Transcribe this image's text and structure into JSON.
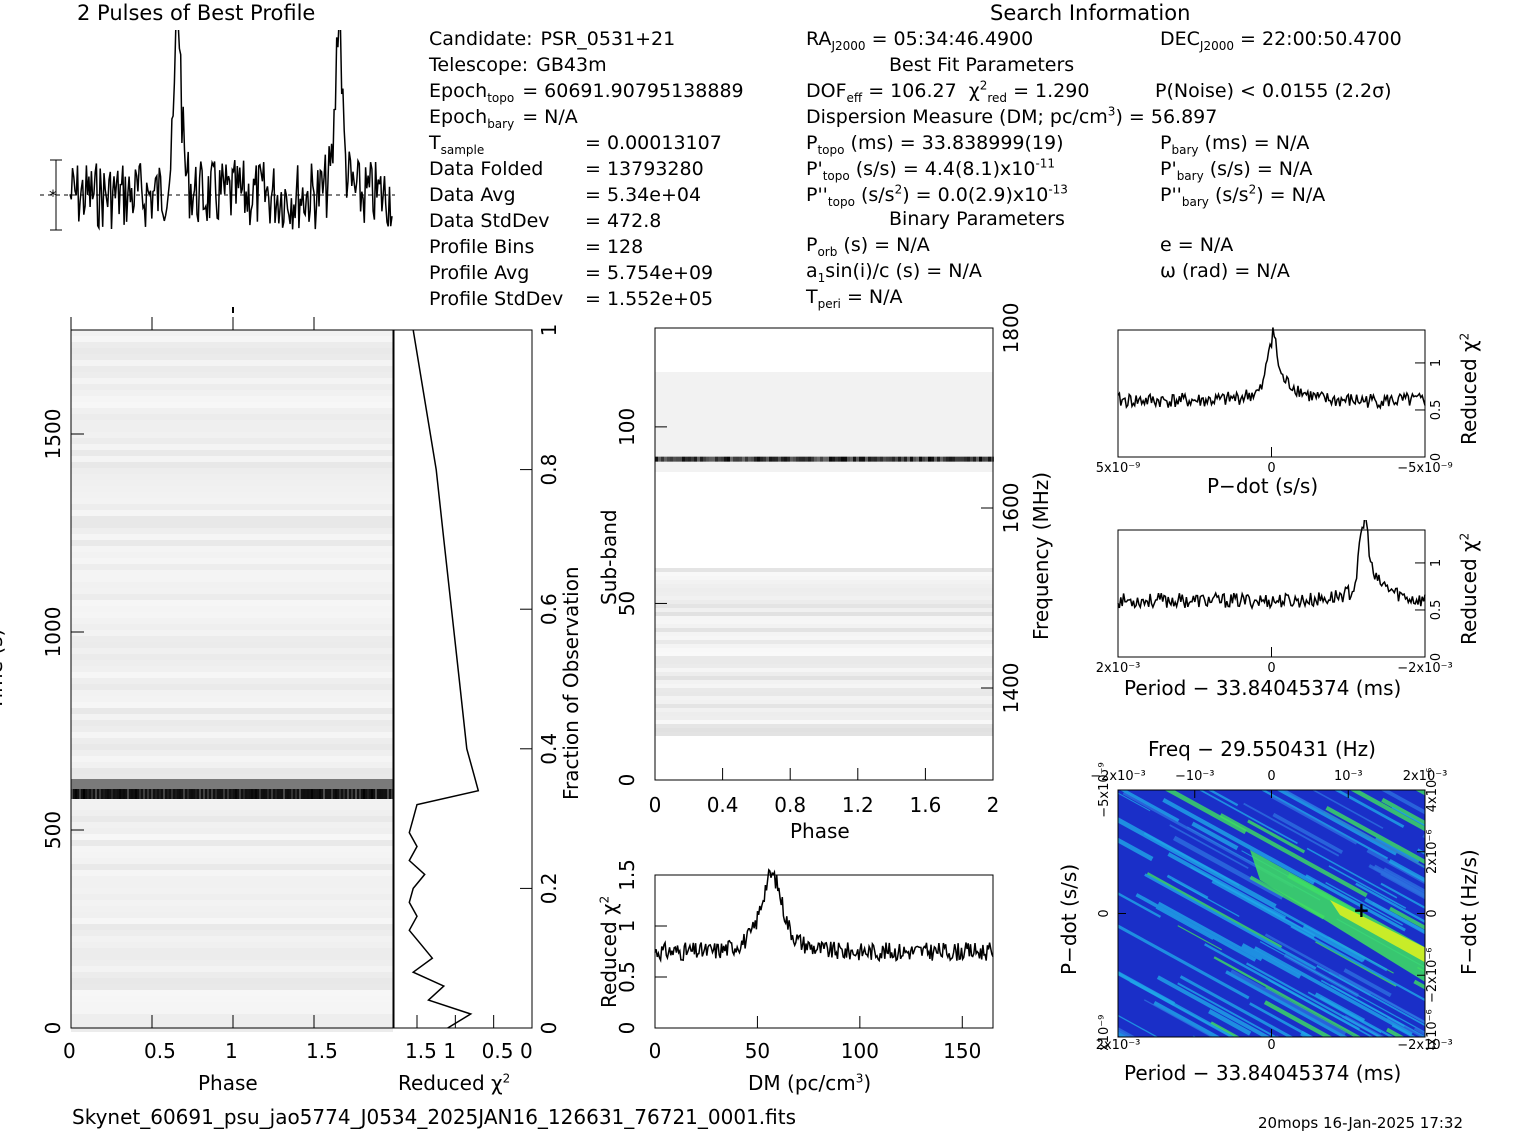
{
  "header": {
    "profile_title": "2 Pulses of Best Profile",
    "search_title": "Search Information"
  },
  "info_left": [
    {
      "label": "Candidate:",
      "value": "PSR_0531+21"
    },
    {
      "label": "Telescope:",
      "value": "GB43m"
    },
    {
      "label": "Epoch",
      "sub": "topo",
      "value": "= 60691.90795138889"
    },
    {
      "label": "Epoch",
      "sub": "bary",
      "value": "= N/A"
    },
    {
      "label": "T",
      "sub": "sample",
      "value": "=   0.00013107"
    },
    {
      "label": "Data Folded",
      "value": "=   13793280"
    },
    {
      "label": "Data Avg",
      "value": "=   5.34e+04"
    },
    {
      "label": "Data StdDev",
      "value": "=   472.8"
    },
    {
      "label": "Profile Bins",
      "value": "=   128"
    },
    {
      "label": "Profile Avg",
      "value": "=   5.754e+09"
    },
    {
      "label": "Profile StdDev",
      "value": "=   1.552e+05"
    }
  ],
  "info_mid": {
    "ra": "= 05:34:46.4900",
    "best_fit_title": "Best Fit Parameters",
    "dof": "= 106.27",
    "chi2": "= 1.290",
    "dm_line": "Dispersion Measure (DM; pc/cm",
    "dm_value": ") = 56.897",
    "ptopo": "(ms) =  33.838999(19)",
    "pdtopo": "(s/s) =  4.4(8.1)x10",
    "pdtopo_exp": "-11",
    "pddtopo": "(s/s",
    "pddtopo_val": ") = 0.0(2.9)x10",
    "pddtopo_exp": "-13",
    "binary_title": "Binary Parameters",
    "porb": "(s) = N/A",
    "a1sini": "sin(i)/c (s) = N/A",
    "tperi": "= N/A"
  },
  "info_right": {
    "dec": "= 22:00:50.4700",
    "pnoise": "P(Noise) < 0.0155   (2.2σ)",
    "pbary": "(ms) = N/A",
    "pdbary": "(s/s) = N/A",
    "pddbary": "(s/s",
    "pddbary_val": ") = N/A",
    "e": "e = N/A",
    "omega": "ω (rad) = N/A"
  },
  "footer": {
    "filename": "Skynet_60691_psu_jao5774_J0534_2025JAN16_126631_76721_0001.fits",
    "stamp": "20mops 16-Jan-2025 17:32"
  },
  "chart_data": [
    {
      "type": "line",
      "title": "2 Pulses of Best Profile",
      "xlabel": "",
      "ylabel": "",
      "description_values": {
        "x_range": [
          0,
          2
        ],
        "peaks_phase": [
          0.67,
          1.67
        ],
        "baseline": 0.0
      }
    },
    {
      "type": "heatmap",
      "name": "time-phase",
      "xlabel": "Phase",
      "ylabel": "Time (s)",
      "xticks": [
        "0",
        "0.5",
        "1",
        "1.5"
      ],
      "yticks": [
        "0",
        "500",
        "1000",
        "1500"
      ],
      "xlim": [
        0,
        2
      ],
      "ylim": [
        0,
        1750
      ],
      "bright_rows_time_s": [
        565,
        610
      ],
      "right_axis_label": "Fraction of Observation",
      "right_ticks": [
        "0",
        "0.2",
        "0.4",
        "0.6",
        "0.8",
        "1"
      ]
    },
    {
      "type": "line",
      "name": "reduced-chi2-vs-time",
      "xlabel": "Reduced χ²",
      "xticks": [
        "1.5",
        "1",
        "0.5",
        "0"
      ],
      "xlim": [
        1.8,
        0
      ],
      "fraction": [
        0.0,
        0.02,
        0.04,
        0.06,
        0.08,
        0.1,
        0.12,
        0.14,
        0.16,
        0.18,
        0.2,
        0.22,
        0.24,
        0.26,
        0.28,
        0.3,
        0.32,
        0.34,
        0.36,
        0.4,
        0.5,
        0.6,
        0.7,
        0.8,
        0.9,
        1.0
      ],
      "chi2": [
        1.1,
        0.8,
        1.35,
        1.15,
        1.55,
        1.3,
        1.45,
        1.6,
        1.5,
        1.6,
        1.55,
        1.4,
        1.6,
        1.5,
        1.6,
        1.55,
        1.5,
        0.7,
        0.75,
        0.85,
        0.95,
        1.05,
        1.15,
        1.25,
        1.4,
        1.55
      ]
    },
    {
      "type": "heatmap",
      "name": "subband-phase",
      "xlabel": "Phase",
      "ylabel": "Sub-band",
      "xticks": [
        "0",
        "0.4",
        "0.8",
        "1.2",
        "1.6",
        "2"
      ],
      "yticks": [
        "0",
        "50",
        "100"
      ],
      "right_label": "Frequency (MHz)",
      "right_ticks": [
        "1400",
        "1600",
        "1800"
      ],
      "xlim": [
        0,
        2
      ],
      "ylim": [
        0,
        128
      ],
      "bright_subband": 91
    },
    {
      "type": "line",
      "name": "dm-chi2",
      "xlabel": "DM (pc/cm³)",
      "ylabel": "Reduced χ²",
      "xticks": [
        "0",
        "50",
        "100",
        "150"
      ],
      "yticks": [
        "0",
        "0.5",
        "1",
        "1.5"
      ],
      "xlim": [
        0,
        165
      ],
      "ylim": [
        0,
        1.5
      ],
      "peak_dm": 57,
      "peak_chi2": 1.4,
      "baseline": 0.75
    },
    {
      "type": "line",
      "name": "pdot-chi2",
      "xlabel": "P−dot (s/s)",
      "ylabel": "Reduced χ²",
      "xticks": [
        "5x10⁻⁹",
        "0",
        "−5x10⁻⁹"
      ],
      "yticks": [
        "0",
        "0.5",
        "1"
      ],
      "ylim": [
        0,
        1.35
      ],
      "baseline": 0.6,
      "peak": 1.15
    },
    {
      "type": "line",
      "name": "period-chi2",
      "xlabel": "Period − 33.84045374 (ms)",
      "ylabel": "Reduced χ²",
      "xticks": [
        "2x10⁻³",
        "0",
        "−2x10⁻³"
      ],
      "yticks": [
        "0",
        "0.5",
        "1"
      ],
      "ylim": [
        0,
        1.35
      ],
      "baseline": 0.6,
      "peak": 1.3
    },
    {
      "type": "heatmap",
      "name": "period-pdot",
      "title": "Freq − 29.550431 (Hz)",
      "xlabel": "Period − 33.84045374 (ms)",
      "ylabel": "P−dot (s/s)",
      "right_label": "F−dot (Hz/s)",
      "top_ticks": [
        "−2x10⁻³",
        "−10⁻³",
        "0",
        "10⁻³",
        "2x10⁻³"
      ],
      "bottom_ticks": [
        "2x10⁻³",
        "0",
        "−2x10⁻³"
      ],
      "left_ticks": [
        "−5x10⁻⁹",
        "0",
        "5x10⁻⁹"
      ],
      "right_ticks": [
        "4x10⁻⁶",
        "2x10⁻⁶",
        "0",
        "−2x10⁻⁶",
        "−4x10⁻⁶"
      ]
    }
  ],
  "colors": {
    "deep": "#1a2fc8",
    "mid": "#1fa6e8",
    "hot": "#3ee060",
    "peak": "#d8f020"
  }
}
